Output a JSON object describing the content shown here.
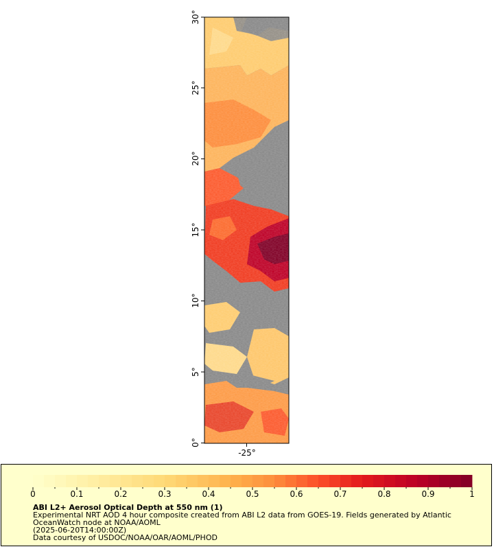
{
  "map": {
    "latitude_labels": [
      "0°",
      "5°",
      "10°",
      "15°",
      "20°",
      "25°",
      "30°"
    ],
    "longitude_label": "-25°",
    "latitude_range": [
      0,
      30
    ],
    "colors": {
      "no_data": "#888888",
      "low": "#ffffcc",
      "mid": "#fd8d3c",
      "high": "#800026"
    }
  },
  "legend": {
    "tick_labels": [
      "0",
      "0.1",
      "0.2",
      "0.3",
      "0.4",
      "0.5",
      "0.6",
      "0.7",
      "0.8",
      "0.9",
      "1"
    ],
    "range": [
      0,
      1
    ],
    "title": "ABI L2+ Aerosol Optical Depth at 550 nm (1)",
    "description_line1": "Experimental NRT AOD 4 hour composite created from ABI L2 data from GOES-19. Fields generated by Atlantic",
    "description_line2": "OceanWatch node at NOAA/AOML",
    "time": "(2025-06-20T14:00:00Z)",
    "credit": "Data courtesy of USDOC/NOAA/OAR/AOML/PHOD"
  }
}
